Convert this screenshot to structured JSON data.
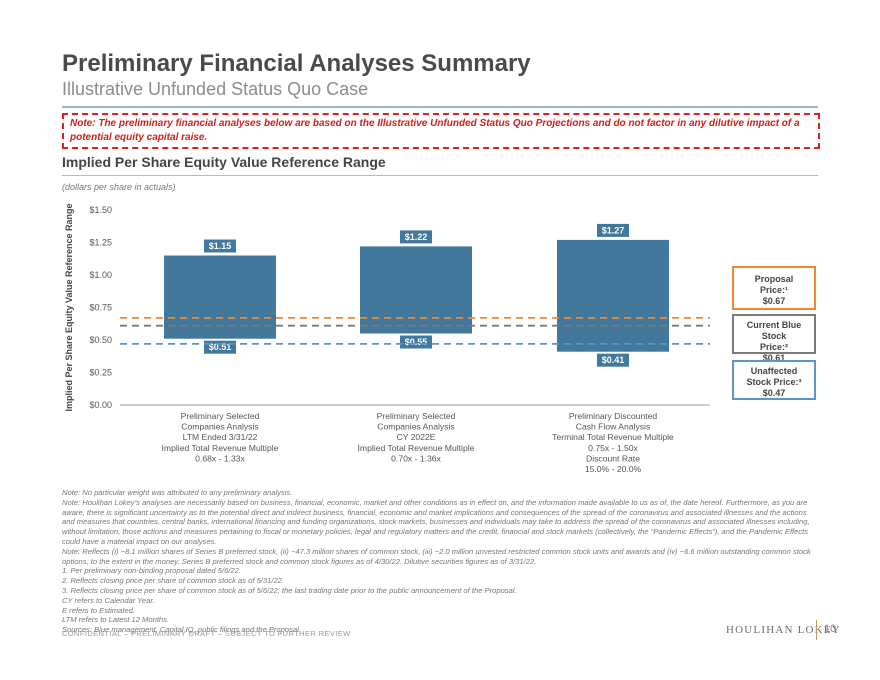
{
  "header": {
    "title": "Preliminary Financial Analyses Summary",
    "subtitle": "Illustrative Unfunded Status Quo Case"
  },
  "note": "Note: The preliminary financial analyses below are based on the Illustrative Unfunded Status Quo Projections and do not factor in any dilutive impact of a potential equity capital raise.",
  "section": {
    "title": "Implied Per Share Equity Value Reference Range",
    "units": "(dollars per share in actuals)"
  },
  "colors": {
    "bar": "#41789b",
    "bar_label_bg": "#41789b",
    "proposal": "#ef8a2f",
    "current": "#7a7a7a",
    "unaffected": "#5b96c7"
  },
  "chart_data": {
    "type": "bar",
    "subtype": "floating-range",
    "ylabel": "Implied Per Share Equity Value Reference Range",
    "ylim": [
      0,
      1.5
    ],
    "yticks": [
      "$0.00",
      "$0.25",
      "$0.50",
      "$0.75",
      "$1.00",
      "$1.25",
      "$1.50"
    ],
    "ytick_values": [
      0,
      0.25,
      0.5,
      0.75,
      1.0,
      1.25,
      1.5
    ],
    "bars": [
      {
        "low": 0.51,
        "high": 1.15,
        "low_label": "$0.51",
        "high_label": "$1.15",
        "category_lines": [
          "Preliminary Selected",
          "Companies Analysis",
          "LTM Ended 3/31/22",
          "Implied Total Revenue Multiple",
          "0.68x - 1.33x"
        ]
      },
      {
        "low": 0.55,
        "high": 1.22,
        "low_label": "$0.55",
        "high_label": "$1.22",
        "category_lines": [
          "Preliminary Selected",
          "Companies Analysis",
          "CY 2022E",
          "Implied Total Revenue Multiple",
          "0.70x - 1.36x"
        ]
      },
      {
        "low": 0.41,
        "high": 1.27,
        "low_label": "$0.41",
        "high_label": "$1.27",
        "category_lines": [
          "Preliminary Discounted",
          "Cash Flow Analysis",
          "Terminal Total Revenue Multiple",
          "0.75x - 1.50x",
          "Discount Rate",
          "15.0% - 20.0%"
        ]
      }
    ],
    "reference_lines": [
      {
        "name": "Proposal",
        "value": 0.67,
        "lines": [
          "Proposal",
          "Price:¹",
          "$0.67"
        ],
        "color_key": "proposal"
      },
      {
        "name": "Current Blue Stock",
        "value": 0.61,
        "lines": [
          "Current Blue Stock",
          "Price:²",
          "$0.61"
        ],
        "color_key": "current"
      },
      {
        "name": "Unaffected Stock",
        "value": 0.47,
        "lines": [
          "Unaffected",
          "Stock Price:³",
          "$0.47"
        ],
        "color_key": "unaffected"
      }
    ],
    "grid": false
  },
  "footnotes": [
    "Note: No particular weight was attributed to any preliminary analysis.",
    "Note: Houlihan Lokey’s analyses are necessarily based on business, financial, economic, market and other conditions as in effect on, and the information made available to us as of, the date hereof. Furthermore, as you are aware, there is significant uncertainty as to the potential direct and indirect business, financial, economic and market implications and consequences of the spread of the coronavirus and associated illnesses and the actions and measures that countries, central banks, international financing and funding organizations, stock markets, businesses and individuals may take to address the spread of the coronavirus and associated illnesses including, without limitation, those actions and measures pertaining to fiscal or monetary policies, legal and regulatory matters and the credit, financial and stock markets (collectively, the “Pandemic Effects”), and the Pandemic Effects could have a material impact on our analyses.",
    "Note: Reflects (i) ~8.1 million shares of Series B preferred stock, (ii) ~47.3 million shares of common stock, (iii) ~2.0 million unvested restricted common stock units and awards and (iv) ~6.6 million outstanding common stock options, to the extent in the money. Series B preferred stock and common stock figures as of 4/30/22. Dilutive securities figures as of 3/31/22.",
    "1.  Per preliminary non-binding proposal dated 5/6/22.",
    "2.  Reflects closing price per share of common stock as of 5/31/22.",
    "3.  Reflects closing price per share of common stock as of 5/6/22, the last trading date prior to the public announcement of the Proposal.",
    "CY refers to Calendar Year.",
    "E refers to Estimated.",
    "LTM refers to Latest 12 Months.",
    "Sources: Blue management, Capital IQ, public filings and the Proposal."
  ],
  "footer": {
    "confidential": "CONFIDENTIAL – PRELIMINARY DRAFT – SUBJECT TO FURTHER REVIEW",
    "brand": "HOULIHAN LOKEY",
    "page": "10"
  }
}
